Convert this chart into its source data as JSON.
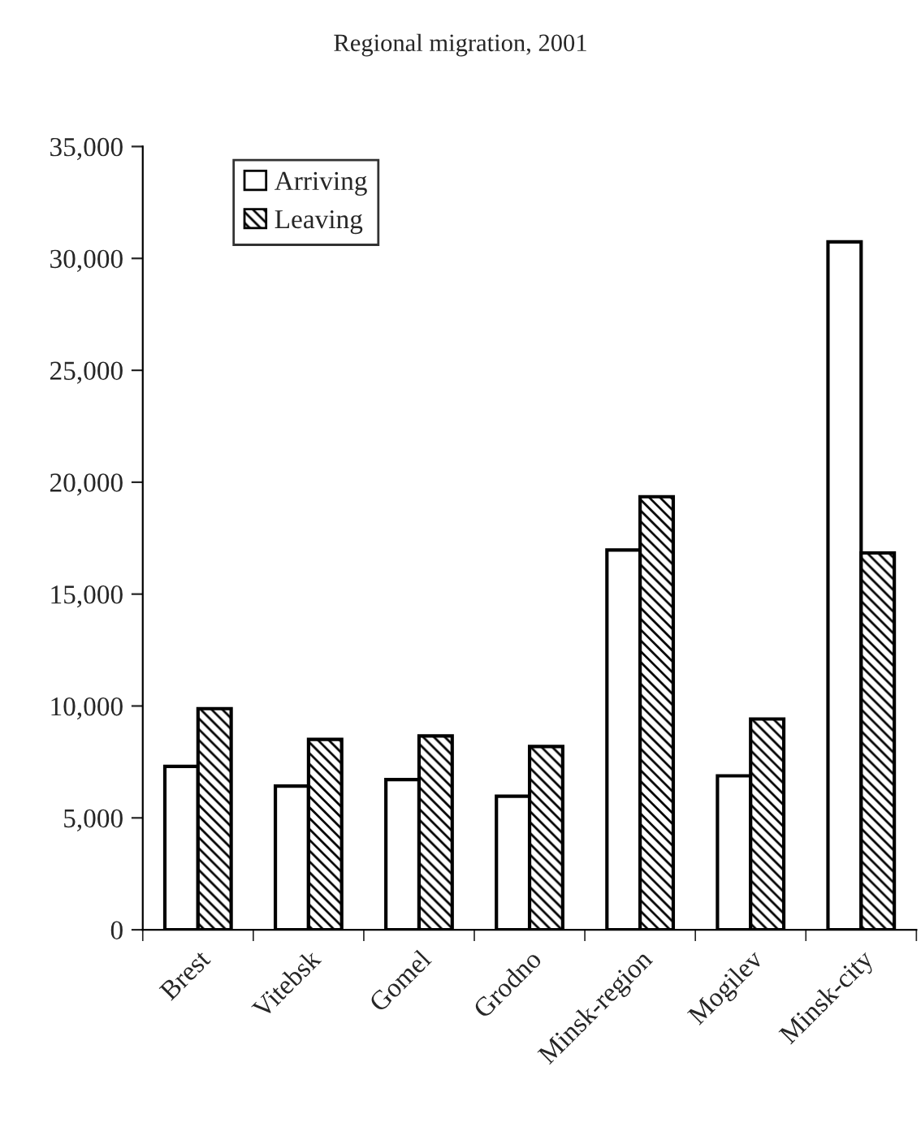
{
  "chart_data": {
    "type": "bar",
    "title": "Regional migration, 2001",
    "categories": [
      "Brest",
      "Vitebsk",
      "Gomel",
      "Grodno",
      "Minsk-region",
      "Mogilev",
      "Minsk-city"
    ],
    "series": [
      {
        "name": "Arriving",
        "color": "#ffffff",
        "values": [
          7300,
          6420,
          6710,
          5970,
          16970,
          6880,
          30740
        ]
      },
      {
        "name": "Leaving",
        "color": "#000000",
        "values": [
          9880,
          8510,
          8660,
          8190,
          19350,
          9420,
          16840
        ]
      }
    ],
    "ylim": [
      0,
      35000
    ],
    "yticks": [
      {
        "value": 0,
        "label": "0"
      },
      {
        "value": 5000,
        "label": "5,000"
      },
      {
        "value": 10000,
        "label": "10,000"
      },
      {
        "value": 15000,
        "label": "15,000"
      },
      {
        "value": 20000,
        "label": "20,000"
      },
      {
        "value": 25000,
        "label": "25,000"
      },
      {
        "value": 30000,
        "label": "30,000"
      },
      {
        "value": 35000,
        "label": "35,000"
      }
    ],
    "grid": false,
    "legend": "top left"
  }
}
